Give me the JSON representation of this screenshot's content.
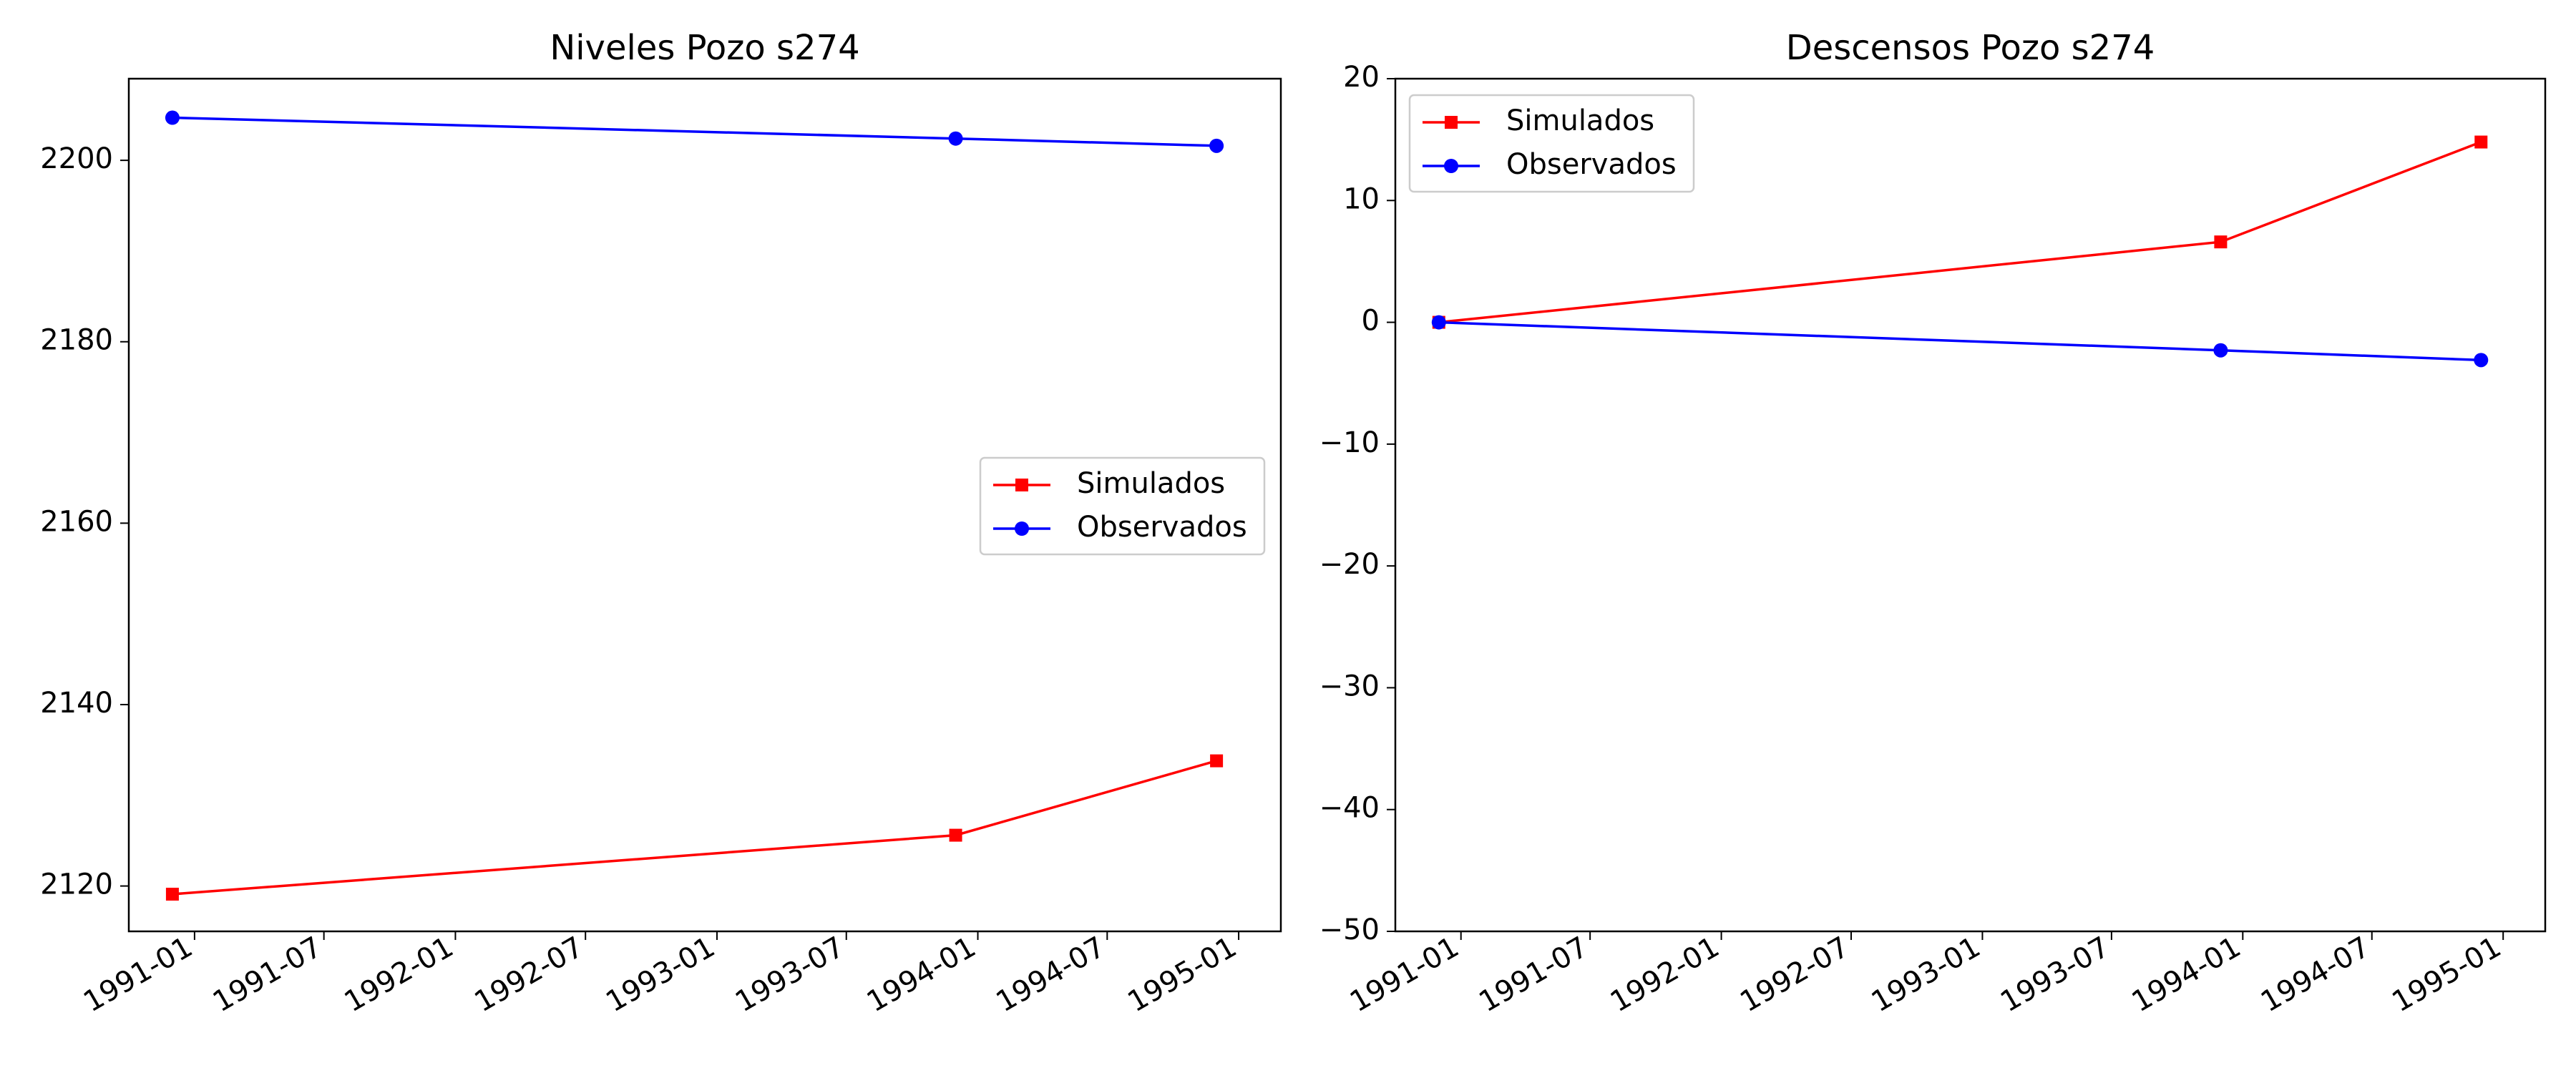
{
  "colors": {
    "simulados": "#ff0000",
    "observados": "#0000ff"
  },
  "legend_frame_color": "#cccccc",
  "chart_data": [
    {
      "type": "line",
      "title": "Niveles Pozo s274",
      "xlabel": "",
      "ylabel": "",
      "x_axis": "date",
      "x": [
        "1990-12-01",
        "1993-12-01",
        "1994-12-01"
      ],
      "xlim": [
        "1990-10-01",
        "1995-03-01"
      ],
      "ylim": [
        2115,
        2209
      ],
      "x_ticks": [
        "1991-01",
        "1991-07",
        "1992-01",
        "1992-07",
        "1993-01",
        "1993-07",
        "1994-01",
        "1994-07",
        "1995-01"
      ],
      "y_ticks": [
        "2120",
        "2140",
        "2160",
        "2180",
        "2200"
      ],
      "legend_position": "center-right",
      "series": [
        {
          "name": "Simulados",
          "marker": "square",
          "values": [
            2119.1,
            2125.6,
            2133.8
          ]
        },
        {
          "name": "Observados",
          "marker": "circle",
          "values": [
            2204.7,
            2202.4,
            2201.6
          ]
        }
      ]
    },
    {
      "type": "line",
      "title": "Descensos Pozo s274",
      "xlabel": "",
      "ylabel": "",
      "x_axis": "date",
      "x": [
        "1990-12-01",
        "1993-12-01",
        "1994-12-01"
      ],
      "xlim": [
        "1990-10-01",
        "1995-03-01"
      ],
      "ylim": [
        -50,
        20
      ],
      "x_ticks": [
        "1991-01",
        "1991-07",
        "1992-01",
        "1992-07",
        "1993-01",
        "1993-07",
        "1994-01",
        "1994-07",
        "1995-01"
      ],
      "y_ticks": [
        "−50",
        "−40",
        "−30",
        "−20",
        "−10",
        "0",
        "10",
        "20"
      ],
      "legend_position": "top-left",
      "series": [
        {
          "name": "Simulados",
          "marker": "square",
          "values": [
            0,
            6.6,
            14.8
          ]
        },
        {
          "name": "Observados",
          "marker": "circle",
          "values": [
            0,
            -2.3,
            -3.1
          ]
        }
      ]
    }
  ]
}
